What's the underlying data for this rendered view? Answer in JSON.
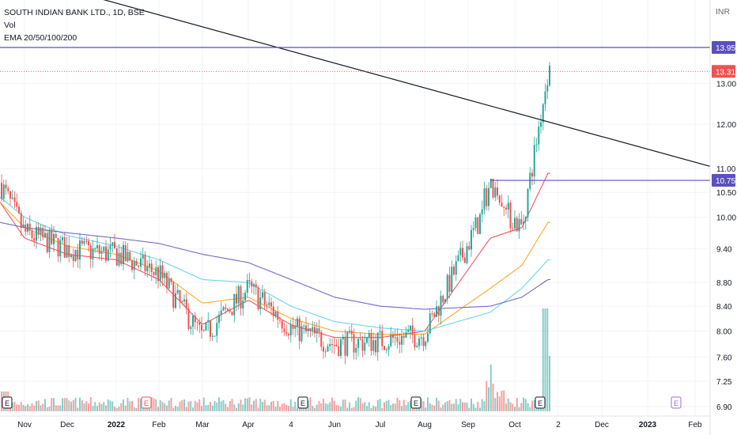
{
  "header": {
    "symbol_line": "SOUTH INDIAN BANK LTD., 1D, BSE",
    "indicator_vol": "Vol",
    "indicator_ema": "EMA 20/50/100/200"
  },
  "currency": "INR",
  "colors": {
    "up": "#26a69a",
    "down": "#ef5350",
    "hline": "#5c4fbf",
    "trendline": "#131722",
    "ema20": "#f23645",
    "ema50": "#ff9800",
    "ema100": "#4dd0e1",
    "ema200": "#5c4fbf",
    "price_label_red": "#ef5350",
    "event_purple": "#9c6ade"
  },
  "chart_data": {
    "type": "candlestick",
    "title": "SOUTH INDIAN BANK LTD., 1D, BSE",
    "y_scale": "log",
    "ylim": [
      6.8,
      15.2
    ],
    "y_ticks": [
      6.9,
      7.25,
      7.6,
      8.0,
      8.4,
      8.8,
      9.4,
      10.0,
      10.5,
      11.0,
      12.0,
      13.0
    ],
    "x_ticks": [
      "Nov",
      "Dec",
      "2022",
      "Feb",
      "Mar",
      "Apr",
      "4",
      "Jun",
      "Jul",
      "Aug",
      "Sep",
      "Oct",
      "2",
      "Dec",
      "2023",
      "Feb"
    ],
    "price_levels": [
      {
        "label": "13.95",
        "value": 13.95,
        "kind": "horizontal-line"
      },
      {
        "label": "10.75",
        "value": 10.75,
        "kind": "horizontal-ray"
      },
      {
        "label": "13.31",
        "value": 13.31,
        "kind": "last-price"
      }
    ],
    "trendline": {
      "from": {
        "date": "Oct 2021",
        "price": 16.2
      },
      "to": {
        "date": "Feb 2023",
        "price": 11.05
      }
    },
    "price_path": [
      [
        "Oct",
        10.7
      ],
      [
        "Nov",
        9.7
      ],
      [
        "Dec",
        9.4
      ],
      [
        "2022",
        9.3
      ],
      [
        "Feb",
        8.95
      ],
      [
        "Mar",
        7.9
      ],
      [
        "Apr",
        8.7
      ],
      [
        "4",
        8.05
      ],
      [
        "Jun",
        7.8
      ],
      [
        "Jul",
        7.85
      ],
      [
        "Aug",
        7.95
      ],
      [
        "Sep",
        10.4
      ],
      [
        "Oct",
        9.8
      ],
      [
        "2",
        13.31
      ]
    ],
    "ema_series": [
      {
        "name": "EMA 20",
        "values": [
          10.3,
          9.6,
          9.3,
          9.2,
          8.85,
          8.1,
          8.5,
          8.1,
          7.9,
          7.9,
          8.0,
          9.6,
          9.8,
          10.9
        ]
      },
      {
        "name": "EMA 50",
        "values": [
          10.3,
          9.8,
          9.45,
          9.3,
          9.0,
          8.45,
          8.55,
          8.2,
          8.0,
          7.95,
          7.95,
          8.7,
          9.1,
          9.9
        ]
      },
      {
        "name": "EMA 100",
        "values": [
          10.4,
          10.0,
          9.65,
          9.45,
          9.2,
          8.85,
          8.8,
          8.4,
          8.15,
          8.05,
          8.0,
          8.3,
          8.7,
          9.2
        ]
      },
      {
        "name": "EMA 200",
        "values": [
          9.9,
          9.8,
          9.7,
          9.6,
          9.5,
          9.3,
          9.15,
          8.85,
          8.55,
          8.4,
          8.35,
          8.4,
          8.55,
          8.85
        ]
      }
    ],
    "event_markers": [
      {
        "label": "E",
        "position": "Nov"
      },
      {
        "label": "E",
        "position": "Feb"
      },
      {
        "label": "E",
        "position": "4"
      },
      {
        "label": "E",
        "position": "Aug"
      },
      {
        "label": "E",
        "position": "Oct"
      },
      {
        "label": "E",
        "position": "2023",
        "future": true
      }
    ],
    "grid": true,
    "legend": "top-left"
  }
}
